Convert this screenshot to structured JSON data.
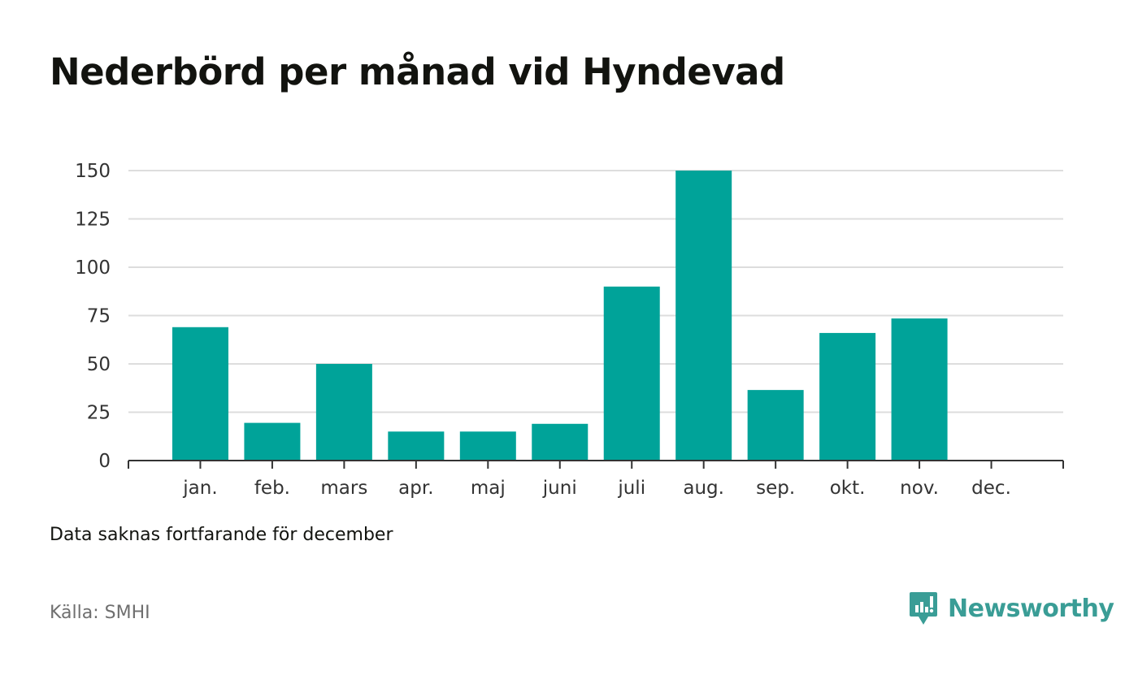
{
  "title": "Nederbörd per månad vid Hyndevad",
  "note": "Data saknas fortfarande för december",
  "source": "Källa: SMHI",
  "brand": {
    "name": "Newsworthy",
    "icon": "newsworthy-logo-icon",
    "color": "#3a9d96"
  },
  "colors": {
    "bar": "#00a399",
    "grid": "#dddddd",
    "axis": "#333333"
  },
  "chart_data": {
    "type": "bar",
    "categories": [
      "jan.",
      "feb.",
      "mars",
      "apr.",
      "maj",
      "juni",
      "juli",
      "aug.",
      "sep.",
      "okt.",
      "nov.",
      "dec."
    ],
    "values": [
      69,
      19.5,
      50,
      15,
      15,
      19,
      90,
      150,
      36.5,
      66,
      73.5,
      null
    ],
    "yticks": [
      0,
      25,
      50,
      75,
      100,
      125,
      150
    ],
    "ylim": [
      0,
      150
    ],
    "grid": true,
    "legend": "none",
    "title": "Nederbörd per månad vid Hyndevad",
    "xlabel": "",
    "ylabel": ""
  }
}
